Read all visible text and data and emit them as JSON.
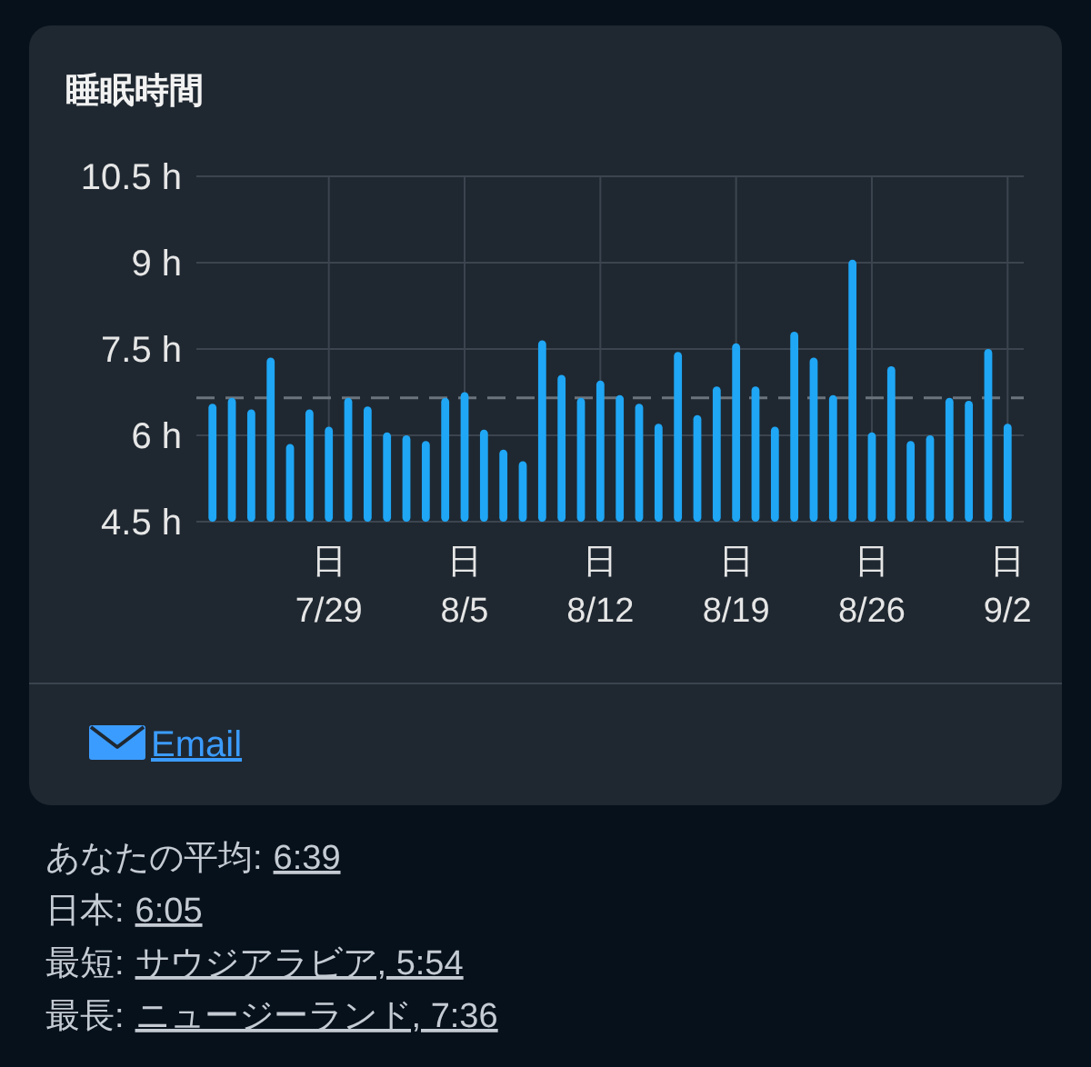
{
  "chart_data": {
    "type": "bar",
    "title": "睡眠時間",
    "categories": [
      null,
      null,
      null,
      null,
      null,
      null,
      "日\n7/29",
      null,
      null,
      null,
      null,
      null,
      null,
      "日\n8/5",
      null,
      null,
      null,
      null,
      null,
      null,
      "日\n8/12",
      null,
      null,
      null,
      null,
      null,
      null,
      "日\n8/19",
      null,
      null,
      null,
      null,
      null,
      null,
      "日\n8/26",
      null,
      null,
      null,
      null,
      null,
      null,
      "日\n9/2"
    ],
    "values": [
      6.55,
      6.65,
      6.45,
      7.35,
      5.85,
      6.45,
      6.15,
      6.65,
      6.5,
      6.05,
      6.0,
      5.9,
      6.65,
      6.75,
      6.1,
      5.75,
      5.55,
      7.65,
      7.05,
      6.65,
      6.95,
      6.7,
      6.55,
      6.2,
      7.45,
      6.35,
      6.85,
      7.6,
      6.85,
      6.15,
      7.8,
      7.35,
      6.7,
      9.05,
      6.05,
      7.2,
      5.9,
      6.0,
      6.65,
      6.6,
      7.5,
      6.2
    ],
    "color": "#1fa6f5",
    "ylim": [
      4.5,
      10.5
    ],
    "yticks": [
      {
        "value": 4.5,
        "label": "4.5 h"
      },
      {
        "value": 6,
        "label": "6 h"
      },
      {
        "value": 7.5,
        "label": "7.5 h"
      },
      {
        "value": 9,
        "label": "9 h"
      },
      {
        "value": 10.5,
        "label": "10.5 h"
      }
    ],
    "grid": true,
    "ref_lines": [
      {
        "axis": "y",
        "value": 6.65,
        "color": "#6b737c",
        "line_style": "dashed"
      }
    ],
    "annotations": [
      "Email",
      "あなたの平均: 6:39",
      "日本: 6:05",
      "最短: サウジアラビア, 5:54",
      "最長: ニュージーランド, 7:36"
    ]
  }
}
